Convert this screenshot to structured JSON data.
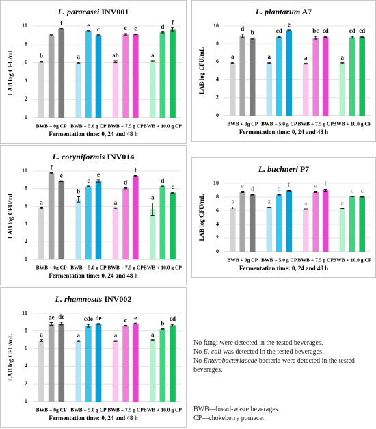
{
  "chart_data": [
    {
      "type": "bar",
      "title": "L. paracasei",
      "title_suffix": "INV001",
      "ylabel": "LAB log CFU/mL",
      "xlabel": "Fermentation time: 0, 24 and 48 h",
      "categories": [
        "BWB + 0g CP",
        "BWB + 5.0 g CP",
        "BWB + 7.5 g CP",
        "BWB + 10.0 g CP"
      ],
      "ylim": [
        0,
        10
      ],
      "yticks": [
        0,
        2,
        4,
        6,
        8,
        10
      ],
      "grid": true,
      "letter_color": "#111",
      "letter_weight": "bold",
      "series": [
        {
          "colors": [
            "#d3d3d3",
            "#b4e3f6",
            "#f9c6ec",
            "#b5f0cd"
          ],
          "values": [
            6.1,
            6.0,
            6.1,
            6.15
          ],
          "errors": [
            0.05,
            0.05,
            0.1,
            0.05
          ],
          "letters": [
            "b",
            "a",
            "ab",
            "a"
          ]
        },
        {
          "colors": [
            "#a8a8a8",
            "#3fc3ea",
            "#f07fd9",
            "#3fd47f"
          ],
          "values": [
            9.0,
            9.45,
            9.1,
            9.3
          ],
          "errors": [
            0.05,
            0.05,
            0.08,
            0.05
          ],
          "letters": [
            null,
            "e",
            "c",
            "d"
          ]
        },
        {
          "colors": [
            "#7b7b7b",
            "#0c9ed6",
            "#e449c9",
            "#14bf5b"
          ],
          "values": [
            9.7,
            9.0,
            9.1,
            9.6
          ],
          "errors": [
            0.05,
            0.05,
            0.05,
            0.2
          ],
          "letters": [
            "f",
            "c",
            "c",
            "f"
          ]
        }
      ]
    },
    {
      "type": "bar",
      "title": "L. plantarum",
      "title_suffix": "A7",
      "ylabel": "LAB log CFU/mL",
      "xlabel": "Fermentation time: 0, 24 and 48 h",
      "categories": [
        "BWB + 0g CP",
        "BWB + 5.0 g CP",
        "BWB + 7.5 g CP",
        "BWB + 10.0 g CP"
      ],
      "ylim": [
        0,
        10
      ],
      "yticks": [
        0,
        2,
        4,
        6,
        8,
        10
      ],
      "grid": true,
      "letter_color": "#111",
      "letter_weight": "bold",
      "series": [
        {
          "colors": [
            "#d3d3d3",
            "#b4e3f6",
            "#f9c6ec",
            "#b5f0cd"
          ],
          "values": [
            5.9,
            5.9,
            5.8,
            5.85
          ],
          "errors": [
            0.05,
            0.05,
            0.05,
            0.05
          ],
          "letters": [
            "a",
            "a",
            "a",
            "a"
          ]
        },
        {
          "colors": [
            "#a8a8a8",
            "#3fc3ea",
            "#f07fd9",
            "#3fd47f"
          ],
          "values": [
            8.9,
            8.8,
            8.7,
            8.75
          ],
          "errors": [
            0.2,
            0.05,
            0.15,
            0.1
          ],
          "letters": [
            "d",
            "cd",
            "bc",
            "cd"
          ]
        },
        {
          "colors": [
            "#7b7b7b",
            "#0c9ed6",
            "#e449c9",
            "#14bf5b"
          ],
          "values": [
            8.6,
            9.5,
            8.8,
            8.8
          ],
          "errors": [
            0.05,
            0.05,
            0.05,
            0.05
          ],
          "letters": [
            "b",
            "e",
            "cd",
            "cd"
          ]
        }
      ]
    },
    {
      "type": "bar",
      "title": "L. coryniformis",
      "title_suffix": "INV014",
      "ylabel": "LAB log CFU/mL",
      "xlabel": "Fermentation time: 0, 24 and 48 h",
      "categories": [
        "BWB + 0g CP",
        "BWB + 5.0 g CP",
        "BWB + 7.5 g CP",
        "BWB + 10.0 g CP"
      ],
      "ylim": [
        0,
        10
      ],
      "yticks": [
        0,
        2,
        4,
        6,
        8,
        10
      ],
      "grid": true,
      "letter_color": "#111",
      "letter_weight": "bold",
      "series": [
        {
          "colors": [
            "#d3d3d3",
            "#b4e3f6",
            "#f9c6ec",
            "#b5f0cd"
          ],
          "values": [
            5.8,
            6.8,
            5.75,
            5.7
          ],
          "errors": [
            0.05,
            0.3,
            0.05,
            0.7
          ],
          "letters": [
            "a",
            "b",
            "a",
            "a"
          ]
        },
        {
          "colors": [
            "#a8a8a8",
            "#3fc3ea",
            "#f07fd9",
            "#3fd47f"
          ],
          "values": [
            9.75,
            8.25,
            8.05,
            8.25
          ],
          "errors": [
            0.05,
            0.05,
            0.05,
            0.05
          ],
          "letters": [
            "f",
            "c",
            "d",
            "d"
          ]
        },
        {
          "colors": [
            "#7b7b7b",
            "#0c9ed6",
            "#e449c9",
            "#14bf5b"
          ],
          "values": [
            8.85,
            8.85,
            9.45,
            7.55
          ],
          "errors": [
            0.05,
            0.15,
            0.05,
            0.05
          ],
          "letters": [
            "e",
            "e",
            "f",
            "c"
          ]
        }
      ]
    },
    {
      "type": "bar",
      "title": "L. buchneri",
      "title_suffix": "P7",
      "ylabel": "LAB log CFU/mL",
      "xlabel": "Fermentation time: 0, 24 and 48 h",
      "categories": [
        "BWB + 0g CP",
        "BWB + 5.0 g CP",
        "BWB + 7.5 g CP",
        "BWB + 10.0 g CP"
      ],
      "ylim": [
        0,
        10
      ],
      "yticks": [
        0,
        2,
        4,
        6,
        8,
        10
      ],
      "grid": true,
      "letter_color": "#777",
      "letter_weight": "normal",
      "series": [
        {
          "colors": [
            "#d3d3d3",
            "#b4e3f6",
            "#f9c6ec",
            "#b5f0cd"
          ],
          "values": [
            6.4,
            6.5,
            6.25,
            6.3
          ],
          "errors": [
            0.15,
            0.05,
            0.05,
            0.05
          ],
          "letters": [
            "a",
            "a",
            "a",
            "a"
          ]
        },
        {
          "colors": [
            "#a8a8a8",
            "#3fc3ea",
            "#f07fd9",
            "#3fd47f"
          ],
          "values": [
            8.75,
            8.35,
            8.75,
            8.1
          ],
          "errors": [
            0.1,
            0.05,
            0.1,
            0.05
          ],
          "letters": [
            "e",
            "d",
            "e",
            "c"
          ]
        },
        {
          "colors": [
            "#7b7b7b",
            "#0c9ed6",
            "#e449c9",
            "#14bf5b"
          ],
          "values": [
            8.35,
            8.95,
            9.0,
            8.05
          ],
          "errors": [
            0.05,
            0.05,
            0.15,
            0.05
          ],
          "letters": [
            "d",
            "f",
            "f",
            "c"
          ]
        }
      ]
    },
    {
      "type": "bar",
      "title": "L. rhamnosus",
      "title_suffix": "INV002",
      "ylabel": "LAB log CFU/mL",
      "xlabel": "Fermentation time: 0, 24 and 48 h",
      "categories": [
        "BWB + 0g CP",
        "BWB + 5.0 g CP",
        "BWB + 7.5 g CP",
        "BWB + 10.0 g CP"
      ],
      "ylim": [
        0,
        10
      ],
      "yticks": [
        0,
        2,
        4,
        6,
        8,
        10
      ],
      "grid": true,
      "letter_color": "#111",
      "letter_weight": "bold",
      "series": [
        {
          "colors": [
            "#d3d3d3",
            "#b4e3f6",
            "#f9c6ec",
            "#b5f0cd"
          ],
          "values": [
            6.9,
            6.85,
            6.85,
            6.95
          ],
          "errors": [
            0.1,
            0.05,
            0.05,
            0.05
          ],
          "letters": [
            "a",
            "a",
            "a",
            "a"
          ]
        },
        {
          "colors": [
            "#a8a8a8",
            "#3fc3ea",
            "#f07fd9",
            "#3fd47f"
          ],
          "values": [
            8.8,
            8.6,
            8.6,
            8.2
          ],
          "errors": [
            0.15,
            0.15,
            0.05,
            0.05
          ],
          "letters": [
            "de",
            "cde",
            "c",
            "b"
          ]
        },
        {
          "colors": [
            "#7b7b7b",
            "#0c9ed6",
            "#e449c9",
            "#14bf5b"
          ],
          "values": [
            8.85,
            8.8,
            8.85,
            8.65
          ],
          "errors": [
            0.15,
            0.05,
            0.05,
            0.1
          ],
          "letters": [
            "de",
            "de",
            "e",
            "cd"
          ]
        }
      ]
    }
  ],
  "notes": [
    {
      "pre": "No fungi were detected in the tested beverages."
    },
    {
      "pre": "No ",
      "italic": "E. coli",
      "post": " was detected in the tested beverages."
    },
    {
      "pre": "No ",
      "italic": "Enterobacteriaceae",
      "post": " bacteria were detected in the tested beverages."
    }
  ],
  "abbreviations": [
    "BWB—bread-waste beverages.",
    "CP—chokeberry pomace."
  ]
}
